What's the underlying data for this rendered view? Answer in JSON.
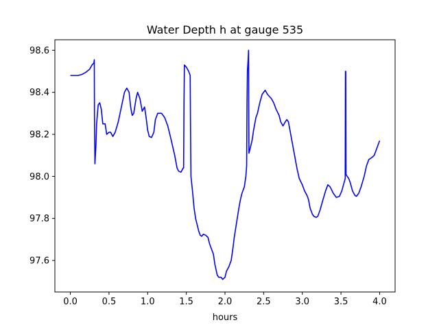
{
  "chart_data": {
    "type": "line",
    "title": "Water Depth h at gauge 535",
    "xlabel": "hours",
    "ylabel": "",
    "xlim": [
      -0.2,
      4.2
    ],
    "ylim": [
      97.45,
      98.65
    ],
    "xticks": [
      0.0,
      0.5,
      1.0,
      1.5,
      2.0,
      2.5,
      3.0,
      3.5,
      4.0
    ],
    "xtick_labels": [
      "0.0",
      "0.5",
      "1.0",
      "1.5",
      "2.0",
      "2.5",
      "3.0",
      "3.5",
      "4.0"
    ],
    "yticks": [
      97.6,
      97.8,
      98.0,
      98.2,
      98.4,
      98.6
    ],
    "ytick_labels": [
      "97.6",
      "97.8",
      "98.0",
      "98.2",
      "98.4",
      "98.6"
    ],
    "grid": false,
    "line_color": "#0000ff",
    "series": [
      {
        "points": [
          [
            0.0,
            98.48
          ],
          [
            0.1,
            98.48
          ],
          [
            0.15,
            98.485
          ],
          [
            0.2,
            98.495
          ],
          [
            0.25,
            98.51
          ],
          [
            0.28,
            98.53
          ],
          [
            0.305,
            98.54
          ],
          [
            0.31,
            98.555
          ],
          [
            0.312,
            98.29
          ],
          [
            0.318,
            98.06
          ],
          [
            0.33,
            98.14
          ],
          [
            0.34,
            98.25
          ],
          [
            0.36,
            98.34
          ],
          [
            0.38,
            98.35
          ],
          [
            0.4,
            98.32
          ],
          [
            0.42,
            98.25
          ],
          [
            0.45,
            98.25
          ],
          [
            0.47,
            98.2
          ],
          [
            0.5,
            98.21
          ],
          [
            0.52,
            98.21
          ],
          [
            0.55,
            98.19
          ],
          [
            0.58,
            98.21
          ],
          [
            0.62,
            98.26
          ],
          [
            0.66,
            98.33
          ],
          [
            0.7,
            98.4
          ],
          [
            0.73,
            98.42
          ],
          [
            0.76,
            98.4
          ],
          [
            0.78,
            98.33
          ],
          [
            0.8,
            98.29
          ],
          [
            0.82,
            98.3
          ],
          [
            0.85,
            98.37
          ],
          [
            0.87,
            98.4
          ],
          [
            0.9,
            98.37
          ],
          [
            0.93,
            98.31
          ],
          [
            0.96,
            98.33
          ],
          [
            0.98,
            98.28
          ],
          [
            1.0,
            98.22
          ],
          [
            1.02,
            98.19
          ],
          [
            1.05,
            98.185
          ],
          [
            1.08,
            98.21
          ],
          [
            1.1,
            98.27
          ],
          [
            1.13,
            98.3
          ],
          [
            1.18,
            98.3
          ],
          [
            1.22,
            98.28
          ],
          [
            1.26,
            98.24
          ],
          [
            1.3,
            98.18
          ],
          [
            1.35,
            98.1
          ],
          [
            1.38,
            98.04
          ],
          [
            1.4,
            98.025
          ],
          [
            1.43,
            98.02
          ],
          [
            1.46,
            98.04
          ],
          [
            1.465,
            98.04
          ],
          [
            1.47,
            98.35
          ],
          [
            1.475,
            98.53
          ],
          [
            1.5,
            98.52
          ],
          [
            1.53,
            98.5
          ],
          [
            1.55,
            98.48
          ],
          [
            1.555,
            98.2
          ],
          [
            1.56,
            98.0
          ],
          [
            1.58,
            97.93
          ],
          [
            1.6,
            97.85
          ],
          [
            1.62,
            97.8
          ],
          [
            1.64,
            97.77
          ],
          [
            1.66,
            97.74
          ],
          [
            1.68,
            97.72
          ],
          [
            1.7,
            97.715
          ],
          [
            1.72,
            97.725
          ],
          [
            1.75,
            97.72
          ],
          [
            1.78,
            97.71
          ],
          [
            1.8,
            97.68
          ],
          [
            1.82,
            97.66
          ],
          [
            1.85,
            97.63
          ],
          [
            1.87,
            97.58
          ],
          [
            1.9,
            97.53
          ],
          [
            1.92,
            97.52
          ],
          [
            1.95,
            97.52
          ],
          [
            1.97,
            97.51
          ],
          [
            2.0,
            97.52
          ],
          [
            2.02,
            97.55
          ],
          [
            2.05,
            97.57
          ],
          [
            2.08,
            97.6
          ],
          [
            2.1,
            97.65
          ],
          [
            2.12,
            97.71
          ],
          [
            2.15,
            97.78
          ],
          [
            2.18,
            97.85
          ],
          [
            2.2,
            97.89
          ],
          [
            2.22,
            97.92
          ],
          [
            2.25,
            97.95
          ],
          [
            2.27,
            98.0
          ],
          [
            2.28,
            98.05
          ],
          [
            2.285,
            98.35
          ],
          [
            2.29,
            98.5
          ],
          [
            2.3,
            98.56
          ],
          [
            2.305,
            98.6
          ],
          [
            2.307,
            98.35
          ],
          [
            2.31,
            98.11
          ],
          [
            2.33,
            98.14
          ],
          [
            2.35,
            98.17
          ],
          [
            2.37,
            98.22
          ],
          [
            2.4,
            98.28
          ],
          [
            2.42,
            98.3
          ],
          [
            2.45,
            98.35
          ],
          [
            2.48,
            98.39
          ],
          [
            2.52,
            98.41
          ],
          [
            2.55,
            98.39
          ],
          [
            2.6,
            98.37
          ],
          [
            2.63,
            98.35
          ],
          [
            2.66,
            98.32
          ],
          [
            2.7,
            98.29
          ],
          [
            2.72,
            98.26
          ],
          [
            2.75,
            98.24
          ],
          [
            2.78,
            98.26
          ],
          [
            2.8,
            98.27
          ],
          [
            2.82,
            98.26
          ],
          [
            2.85,
            98.2
          ],
          [
            2.88,
            98.14
          ],
          [
            2.9,
            98.1
          ],
          [
            2.93,
            98.04
          ],
          [
            2.96,
            97.99
          ],
          [
            3.0,
            97.96
          ],
          [
            3.03,
            97.93
          ],
          [
            3.06,
            97.91
          ],
          [
            3.08,
            97.89
          ],
          [
            3.1,
            97.85
          ],
          [
            3.13,
            97.82
          ],
          [
            3.15,
            97.81
          ],
          [
            3.18,
            97.805
          ],
          [
            3.2,
            97.81
          ],
          [
            3.23,
            97.84
          ],
          [
            3.26,
            97.88
          ],
          [
            3.3,
            97.93
          ],
          [
            3.33,
            97.96
          ],
          [
            3.36,
            97.95
          ],
          [
            3.4,
            97.92
          ],
          [
            3.44,
            97.9
          ],
          [
            3.48,
            97.905
          ],
          [
            3.51,
            97.93
          ],
          [
            3.54,
            97.97
          ],
          [
            3.555,
            97.99
          ],
          [
            3.558,
            98.5
          ],
          [
            3.562,
            98.5
          ],
          [
            3.565,
            98.01
          ],
          [
            3.58,
            98.0
          ],
          [
            3.6,
            97.99
          ],
          [
            3.62,
            97.97
          ],
          [
            3.65,
            97.93
          ],
          [
            3.68,
            97.91
          ],
          [
            3.7,
            97.905
          ],
          [
            3.73,
            97.92
          ],
          [
            3.76,
            97.95
          ],
          [
            3.8,
            98.0
          ],
          [
            3.83,
            98.05
          ],
          [
            3.86,
            98.08
          ],
          [
            3.9,
            98.09
          ],
          [
            3.93,
            98.1
          ],
          [
            3.96,
            98.13
          ],
          [
            4.0,
            98.17
          ]
        ]
      }
    ]
  }
}
